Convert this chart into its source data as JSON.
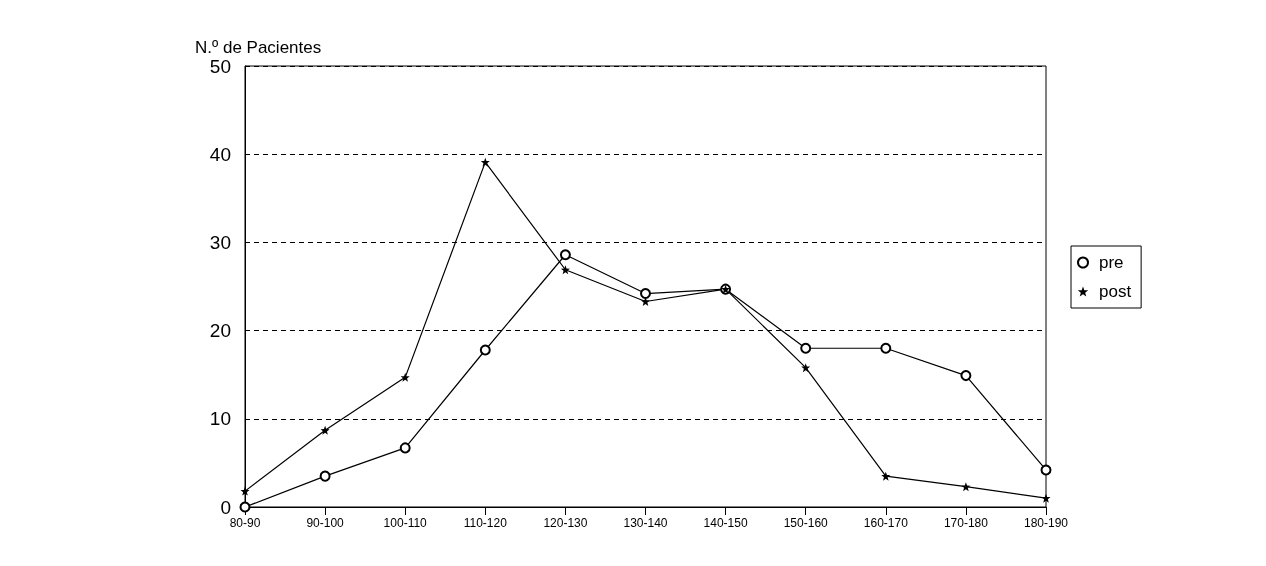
{
  "chart_data": {
    "type": "line",
    "ylabel": "N.º de Pacientes",
    "categories": [
      "80-90",
      "90-100",
      "100-110",
      "110-120",
      "120-130",
      "130-140",
      "140-150",
      "150-160",
      "160-170",
      "170-180",
      "180-190"
    ],
    "series": [
      {
        "name": "pre",
        "color": "#000000",
        "marker": "circle",
        "values": [
          0,
          3.5,
          6.7,
          17.8,
          28.6,
          24.2,
          24.7,
          18,
          18,
          14.9,
          4.2
        ]
      },
      {
        "name": "post",
        "color": "#000000",
        "marker": "star",
        "values": [
          1.8,
          8.7,
          14.7,
          39.1,
          26.9,
          23.3,
          24.7,
          15.8,
          3.5,
          2.3,
          1
        ]
      }
    ],
    "ylim": [
      0,
      50
    ],
    "yticks": [
      0,
      10,
      20,
      30,
      40,
      50
    ],
    "grid": "y",
    "legend": "right",
    "line_style": "solid"
  }
}
